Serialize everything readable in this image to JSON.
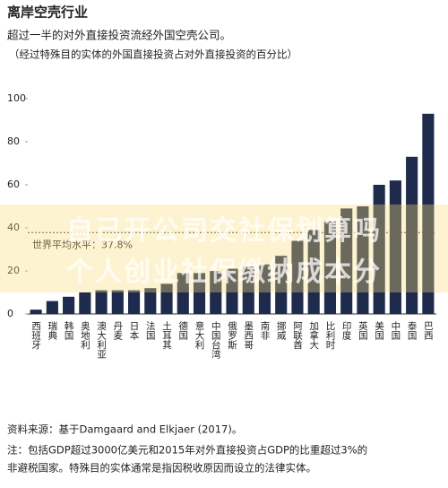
{
  "chart_data": {
    "type": "bar",
    "title": "离岸空壳行业",
    "subtitle": "超过一半的对外直接投资流经外国空壳公司。",
    "description": "（经过特殊目的实体的外国直接投资占对外直接投资的百分比）",
    "categories": [
      "西班牙",
      "瑞典",
      "韩国",
      "奥地利",
      "澳大利亚",
      "丹麦",
      "日本",
      "法国",
      "土耳其",
      "德国",
      "意大利",
      "中国台湾",
      "俄罗斯",
      "墨西哥",
      "南非",
      "挪威",
      "阿联酋",
      "加拿大",
      "比利时",
      "印度",
      "英国",
      "美国",
      "中国",
      "泰国",
      "巴西"
    ],
    "values": [
      2,
      6,
      8,
      10,
      11,
      11,
      11,
      12,
      14,
      19,
      19,
      20,
      21,
      22,
      23,
      27,
      34,
      39,
      43,
      49,
      50,
      60,
      62,
      73,
      93
    ],
    "color": "#1f2b4d",
    "ylim": [
      0,
      100
    ],
    "yticks": [
      0,
      20,
      40,
      60,
      80,
      100
    ],
    "grid": false,
    "average": {
      "value": 37.8,
      "label": "世界平均水平：37.8%"
    },
    "source": "资料来源：基于Damgaard and Elkjaer (2017)。",
    "notes": [
      "注：包括GDP超过3000亿美元和2015年对外直接投资占GDP的比重超过3%的",
      "非避税国家。特殊目的实体通常是指因税收原因而设立的法律实体。"
    ]
  },
  "watermark": [
    "自己开公司交社保划算吗",
    "个人创业社保缴纳成本分"
  ]
}
